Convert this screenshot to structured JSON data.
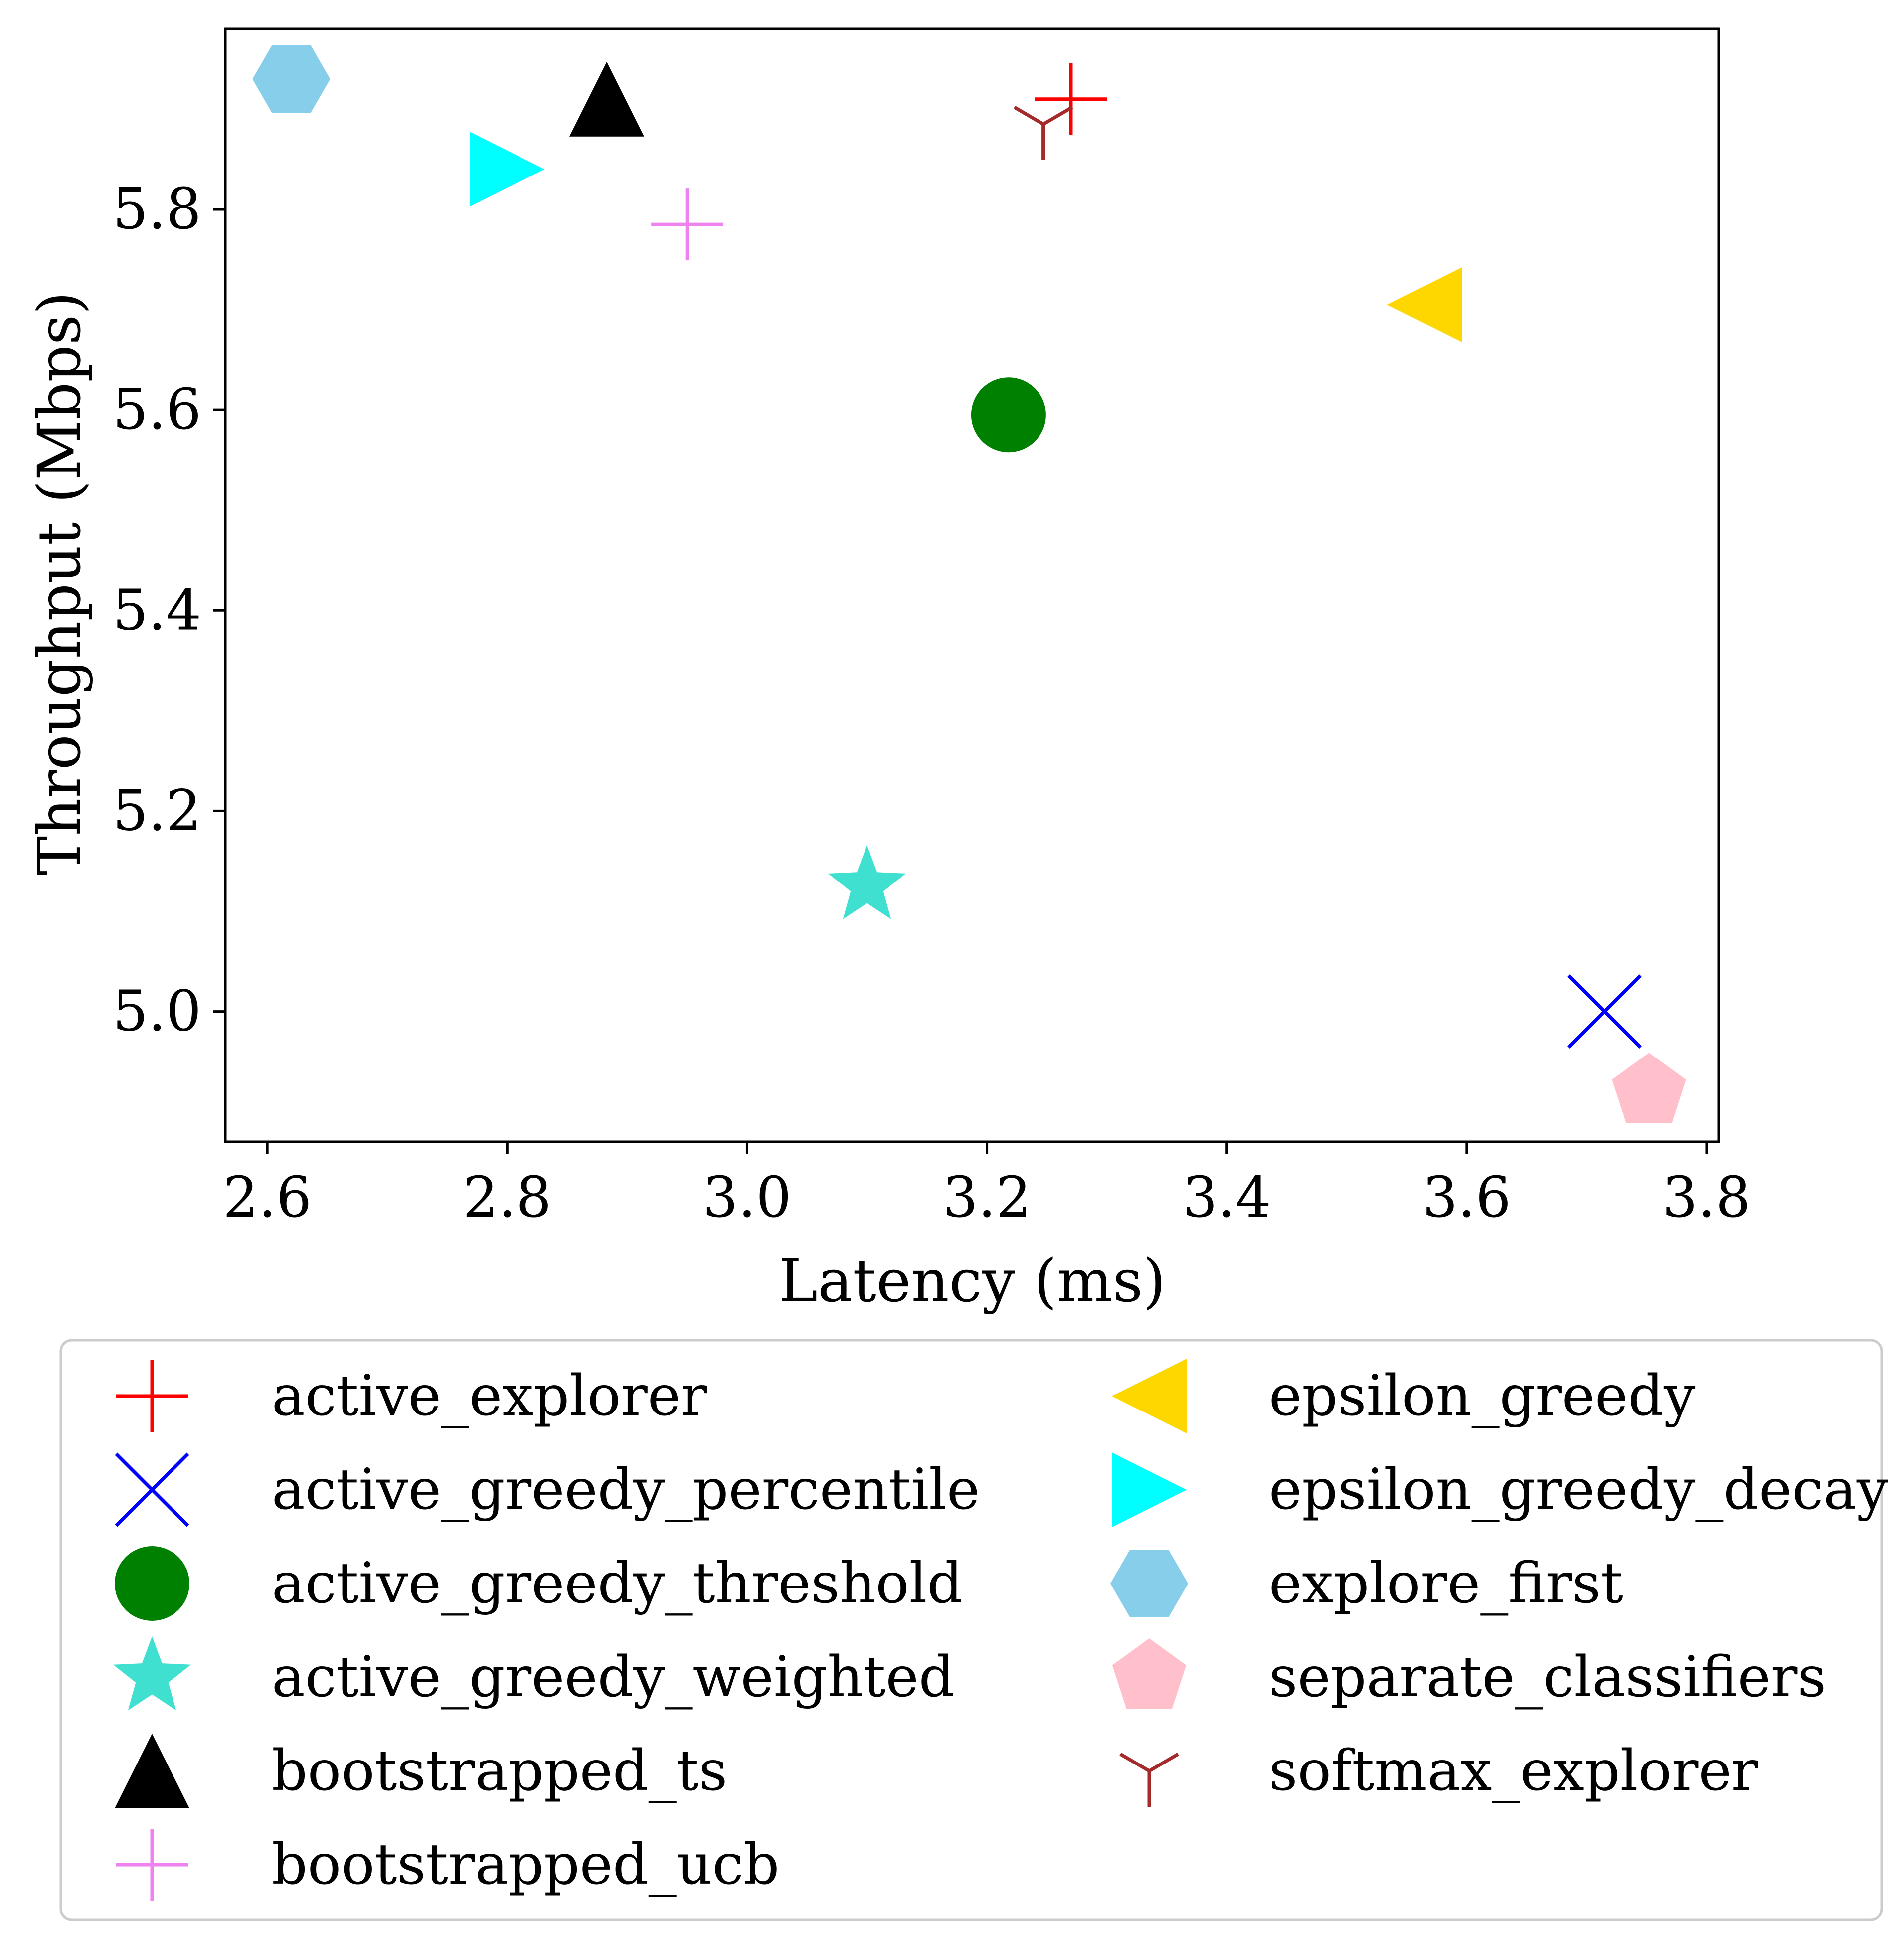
{
  "chart_data": {
    "type": "scatter",
    "title": "",
    "xlabel": "Latency (ms)",
    "ylabel": "Throughput (Mbps)",
    "xlim": [
      2.565,
      3.81
    ],
    "ylim": [
      4.87,
      5.98
    ],
    "xticks": [
      2.6,
      2.8,
      3.0,
      3.2,
      3.4,
      3.6,
      3.8
    ],
    "xtick_labels": [
      "2.6",
      "2.8",
      "3.0",
      "3.2",
      "3.4",
      "3.6",
      "3.8"
    ],
    "yticks": [
      5.0,
      5.2,
      5.4,
      5.6,
      5.8
    ],
    "ytick_labels": [
      "5.0",
      "5.2",
      "5.4",
      "5.6",
      "5.8"
    ],
    "grid": false,
    "legend_placement": "below",
    "series": [
      {
        "name": "active_explorer",
        "marker": "plus",
        "color": "#ff0000",
        "x": 3.27,
        "y": 5.91
      },
      {
        "name": "active_greedy_percentile",
        "marker": "x",
        "color": "#0000ff",
        "x": 3.715,
        "y": 5.0
      },
      {
        "name": "active_greedy_threshold",
        "marker": "circle",
        "color": "#008000",
        "x": 3.218,
        "y": 5.595
      },
      {
        "name": "active_greedy_weighted",
        "marker": "star",
        "color": "#40e0d0",
        "x": 3.1,
        "y": 5.125
      },
      {
        "name": "bootstrapped_ts",
        "marker": "triangle-up",
        "color": "#000000",
        "x": 2.883,
        "y": 5.91
      },
      {
        "name": "bootstrapped_ucb",
        "marker": "plus",
        "color": "#ee82ee",
        "x": 2.95,
        "y": 5.785
      },
      {
        "name": "epsilon_greedy",
        "marker": "triangle-left",
        "color": "#ffd700",
        "x": 3.565,
        "y": 5.705
      },
      {
        "name": "epsilon_greedy_decay",
        "marker": "triangle-right",
        "color": "#00ffff",
        "x": 2.8,
        "y": 5.84
      },
      {
        "name": "explore_first",
        "marker": "hexagon",
        "color": "#87ceeb",
        "x": 2.62,
        "y": 5.93
      },
      {
        "name": "separate_classifiers",
        "marker": "pentagon",
        "color": "#ffc0cb",
        "x": 3.752,
        "y": 4.92
      },
      {
        "name": "softmax_explorer",
        "marker": "tri-down",
        "color": "#a52a2a",
        "x": 3.247,
        "y": 5.885
      }
    ]
  }
}
